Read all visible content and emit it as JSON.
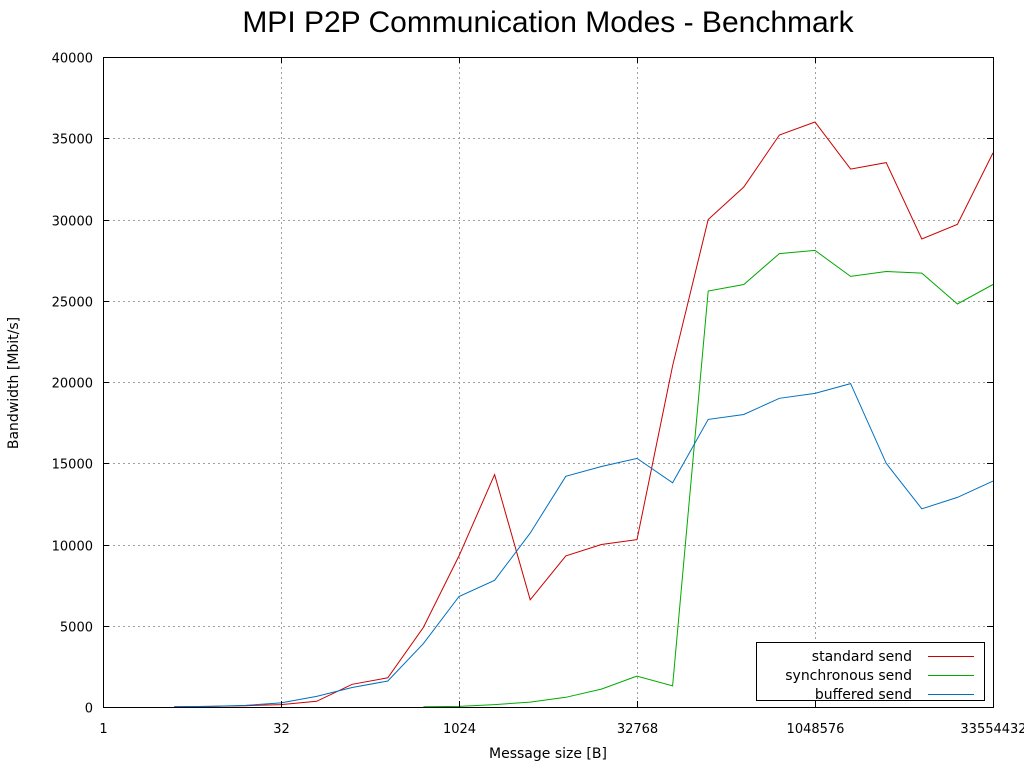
{
  "chart_data": {
    "type": "line",
    "title": "MPI P2P Communication Modes - Benchmark",
    "xlabel": "Message size [B]",
    "ylabel": "Bandwidth [Mbit/s]",
    "x_scale": "log2",
    "xlim": [
      1,
      33554432
    ],
    "ylim": [
      0,
      40000
    ],
    "x_ticks": [
      1,
      32,
      1024,
      32768,
      1048576,
      33554432
    ],
    "x_tick_labels": [
      "1",
      "32",
      "1024",
      "32768",
      "1048576",
      "33554432"
    ],
    "y_ticks": [
      0,
      5000,
      10000,
      15000,
      20000,
      25000,
      30000,
      35000,
      40000
    ],
    "y_tick_labels": [
      "0",
      "5000",
      "10000",
      "15000",
      "20000",
      "25000",
      "30000",
      "35000",
      "40000"
    ],
    "grid": true,
    "legend_position": "bottom-right",
    "x": [
      4,
      8,
      16,
      32,
      64,
      128,
      256,
      512,
      1024,
      2048,
      4096,
      8192,
      16384,
      32768,
      65536,
      131072,
      262144,
      524288,
      1048576,
      2097152,
      4194304,
      8388608,
      16777216,
      33554432
    ],
    "series": [
      {
        "name": "standard send",
        "color": "#cc0000",
        "values": [
          20,
          40,
          80,
          150,
          350,
          1400,
          1800,
          4900,
          9300,
          14300,
          6600,
          9300,
          10000,
          10300,
          21000,
          30000,
          32000,
          35200,
          36000,
          33100,
          33500,
          28800,
          29700,
          34100
        ]
      },
      {
        "name": "synchronous send",
        "color": "#00aa00",
        "values": [
          null,
          null,
          null,
          null,
          null,
          null,
          null,
          20,
          40,
          150,
          300,
          600,
          1100,
          1900,
          1300,
          25600,
          26000,
          27900,
          28100,
          26500,
          26800,
          26700,
          24800,
          26000
        ]
      },
      {
        "name": "buffered send",
        "color": "#0070c0",
        "values": [
          20,
          40,
          100,
          250,
          650,
          1200,
          1600,
          3900,
          6800,
          7800,
          10700,
          14200,
          14800,
          15300,
          13800,
          17700,
          18000,
          19000,
          19300,
          19900,
          15000,
          12200,
          12900,
          13900
        ]
      }
    ]
  }
}
